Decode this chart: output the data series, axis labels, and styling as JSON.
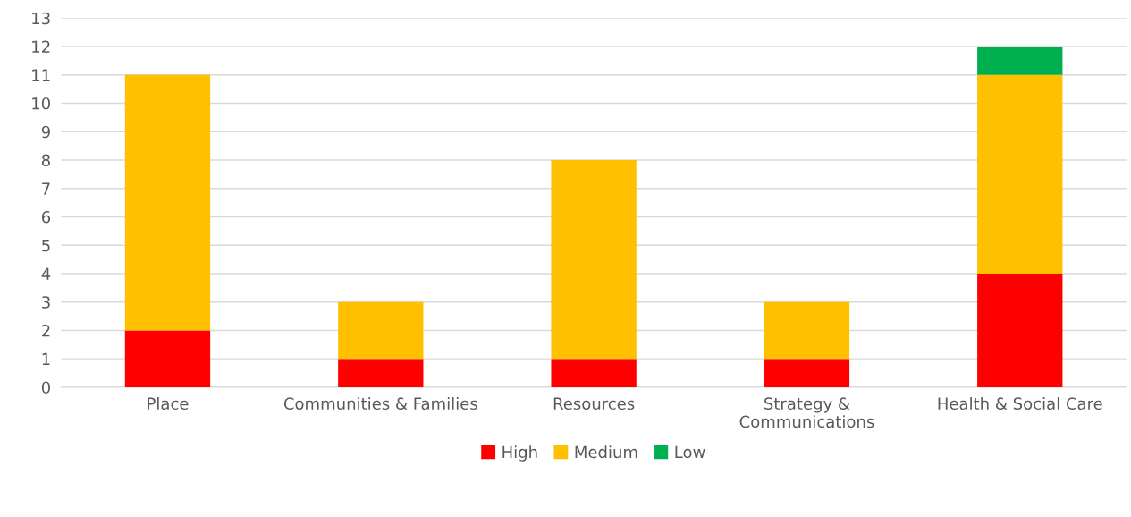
{
  "chart_data": {
    "type": "bar",
    "stacked": true,
    "categories": [
      "Place",
      "Communities & Families",
      "Resources",
      "Strategy & Communications",
      "Health & Social Care"
    ],
    "series": [
      {
        "name": "High",
        "color": "#ff0000",
        "values": [
          2,
          1,
          1,
          1,
          4
        ]
      },
      {
        "name": "Medium",
        "color": "#ffc000",
        "values": [
          9,
          2,
          7,
          2,
          7
        ]
      },
      {
        "name": "Low",
        "color": "#00b050",
        "values": [
          0,
          0,
          0,
          0,
          1
        ]
      }
    ],
    "ylim": [
      0,
      13
    ],
    "yticks": [
      0,
      1,
      2,
      3,
      4,
      5,
      6,
      7,
      8,
      9,
      10,
      11,
      12,
      13
    ],
    "grid": "y",
    "legend": "bottom"
  }
}
